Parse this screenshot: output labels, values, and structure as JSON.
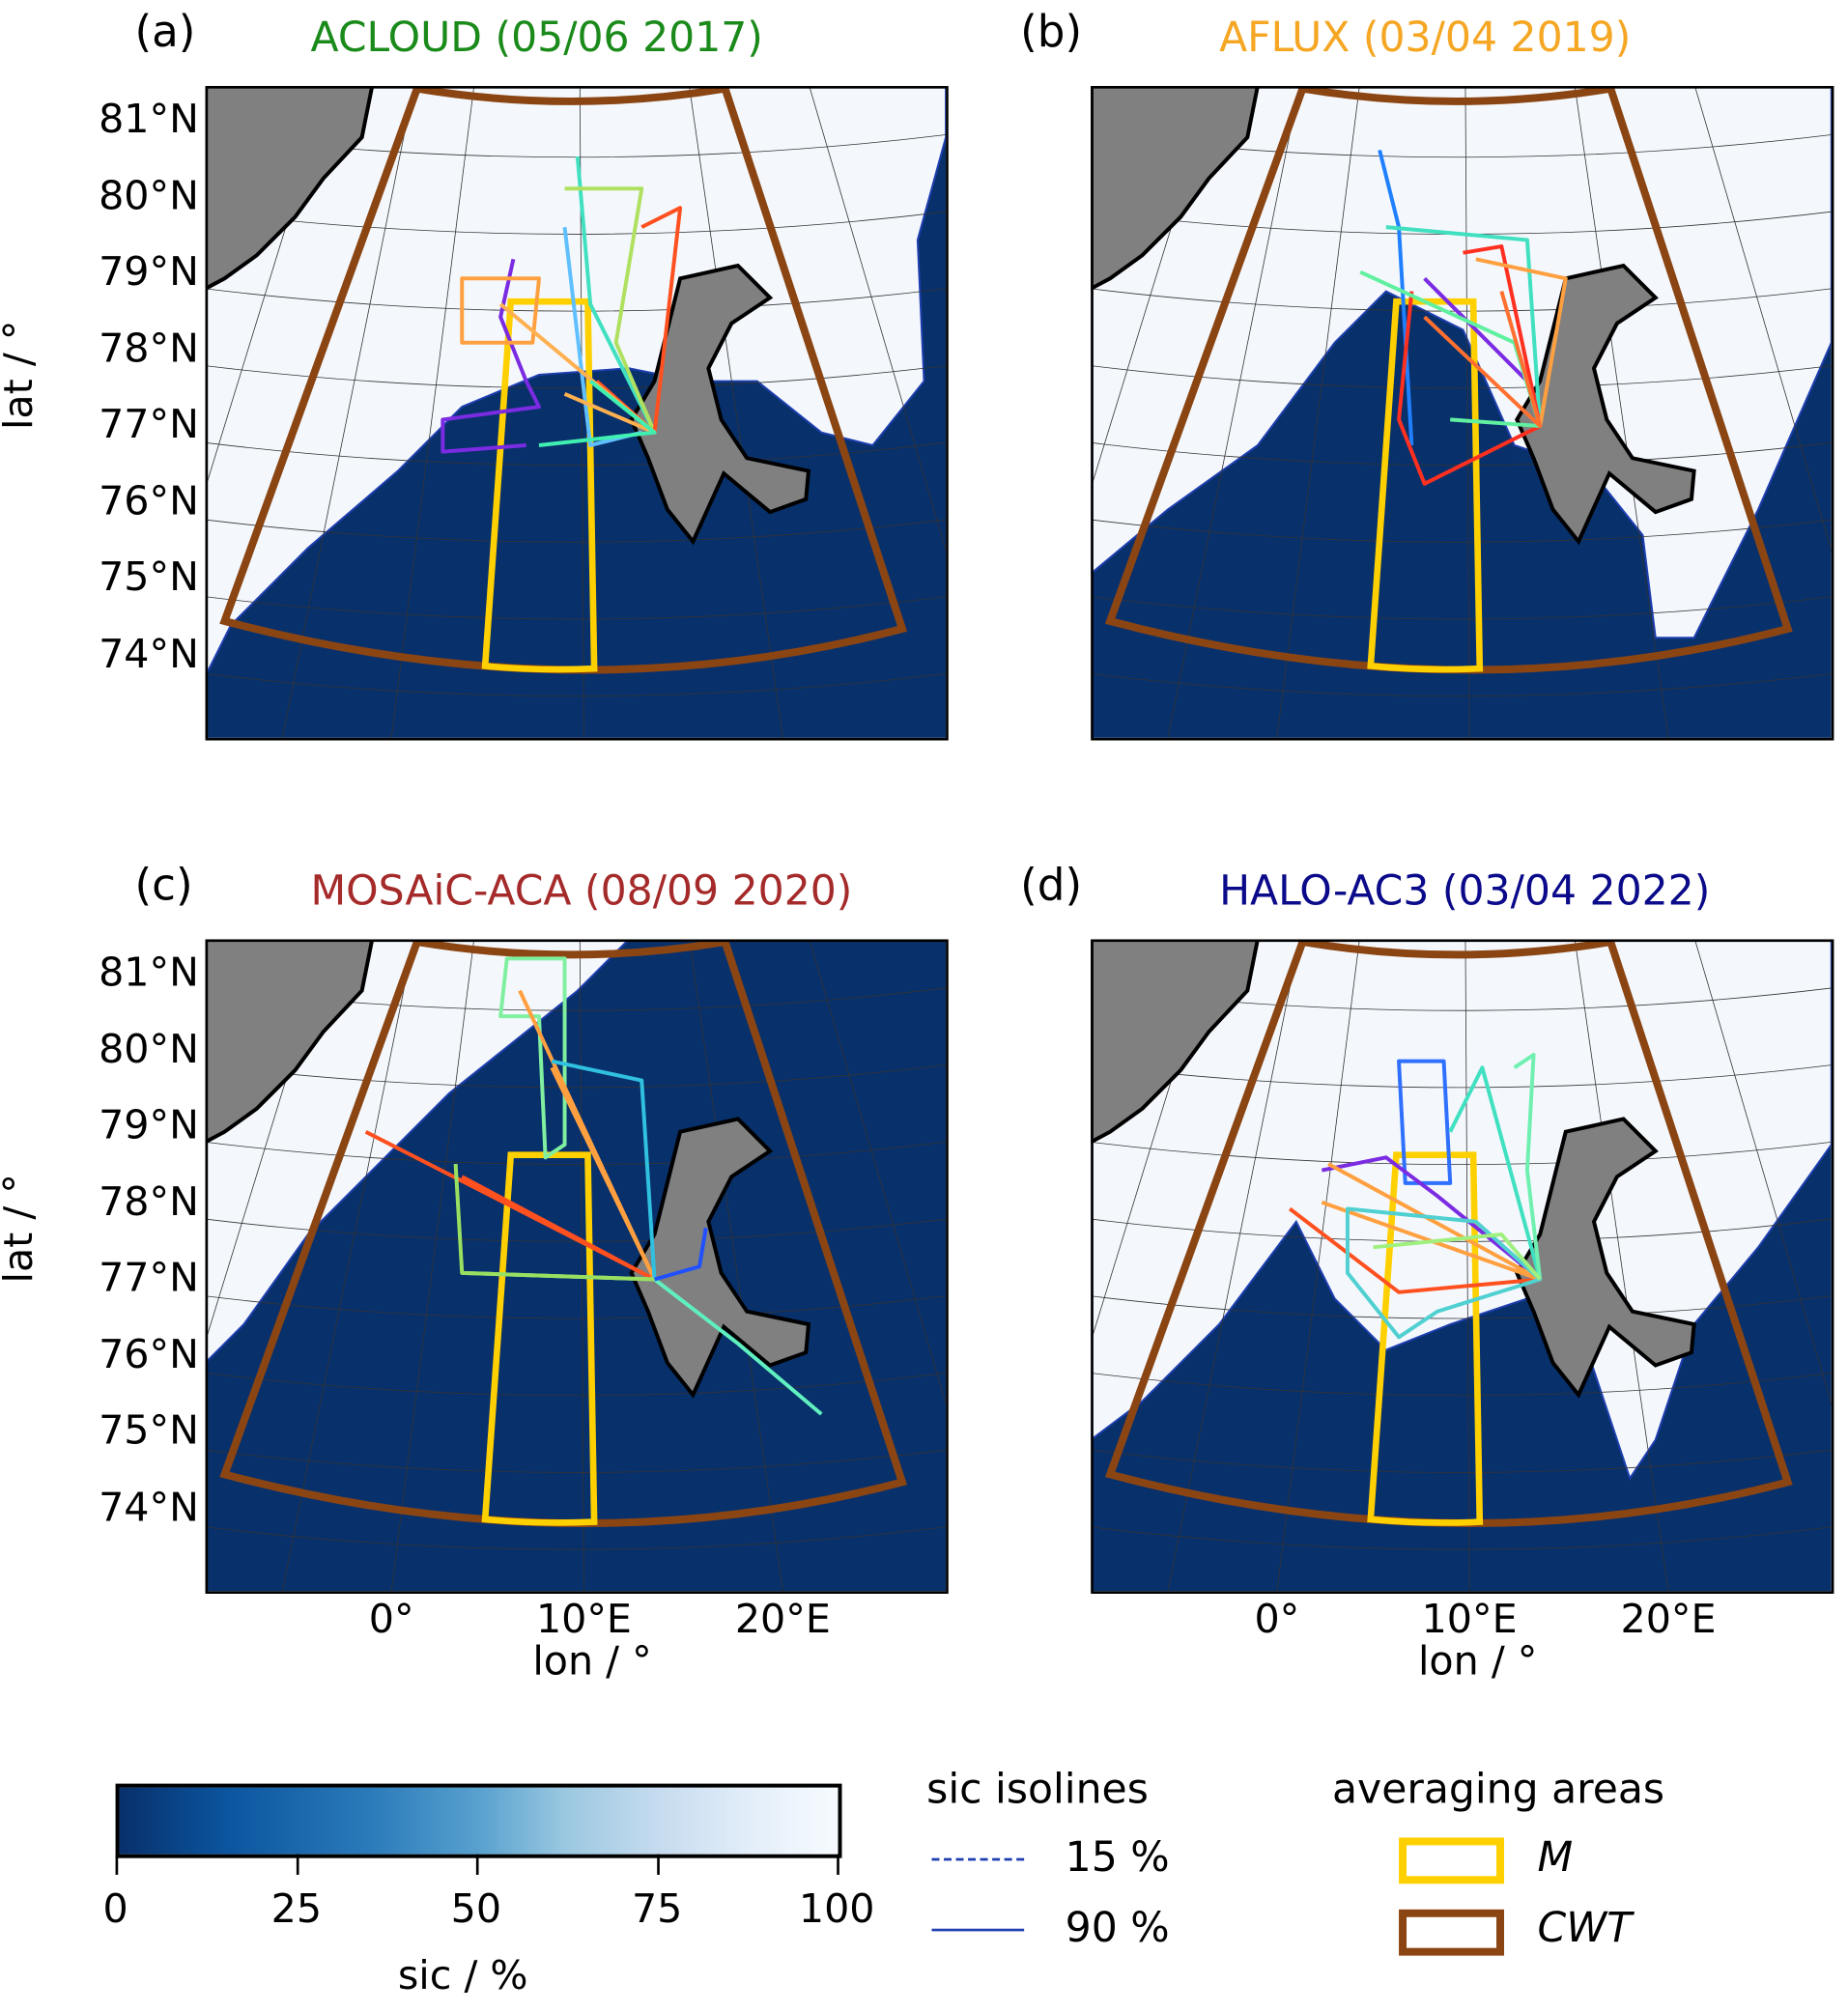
{
  "panels": [
    {
      "label": "(a)",
      "title": "ACLOUD (05/06 2017)",
      "title_color": "#1a8a1a"
    },
    {
      "label": "(b)",
      "title": "AFLUX (03/04 2019)",
      "title_color": "#f5a623"
    },
    {
      "label": "(c)",
      "title": "MOSAiC-ACA (08/09 2020)",
      "title_color": "#a52a2a"
    },
    {
      "label": "(d)",
      "title": "HALO-AC3 (03/04 2022)",
      "title_color": "#0a0a8a"
    }
  ],
  "axes": {
    "ylabel": "lat / °",
    "xlabel": "lon / °",
    "lat_ticks": [
      "81°N",
      "80°N",
      "79°N",
      "78°N",
      "77°N",
      "76°N",
      "75°N",
      "74°N"
    ],
    "lon_ticks": [
      "0°",
      "10°E",
      "20°E"
    ]
  },
  "colorbar": {
    "label": "sic / %",
    "ticks": [
      "0",
      "25",
      "50",
      "75",
      "100"
    ],
    "range": [
      0,
      100
    ],
    "colormap": "Blues_r"
  },
  "isolines": {
    "title": "sic isolines",
    "items": [
      {
        "label": "15 %",
        "style": "dashed",
        "color": "#1f3fb0"
      },
      {
        "label": "90 %",
        "style": "solid",
        "color": "#1f3fb0"
      }
    ]
  },
  "areas": {
    "title": "averaging areas",
    "items": [
      {
        "label": "M",
        "color": "#ffd000"
      },
      {
        "label": "CWT",
        "color": "#8b4513"
      }
    ]
  },
  "colors": {
    "ocean": "#08306b",
    "ice": "#f4f8fd",
    "land": "#808080"
  }
}
